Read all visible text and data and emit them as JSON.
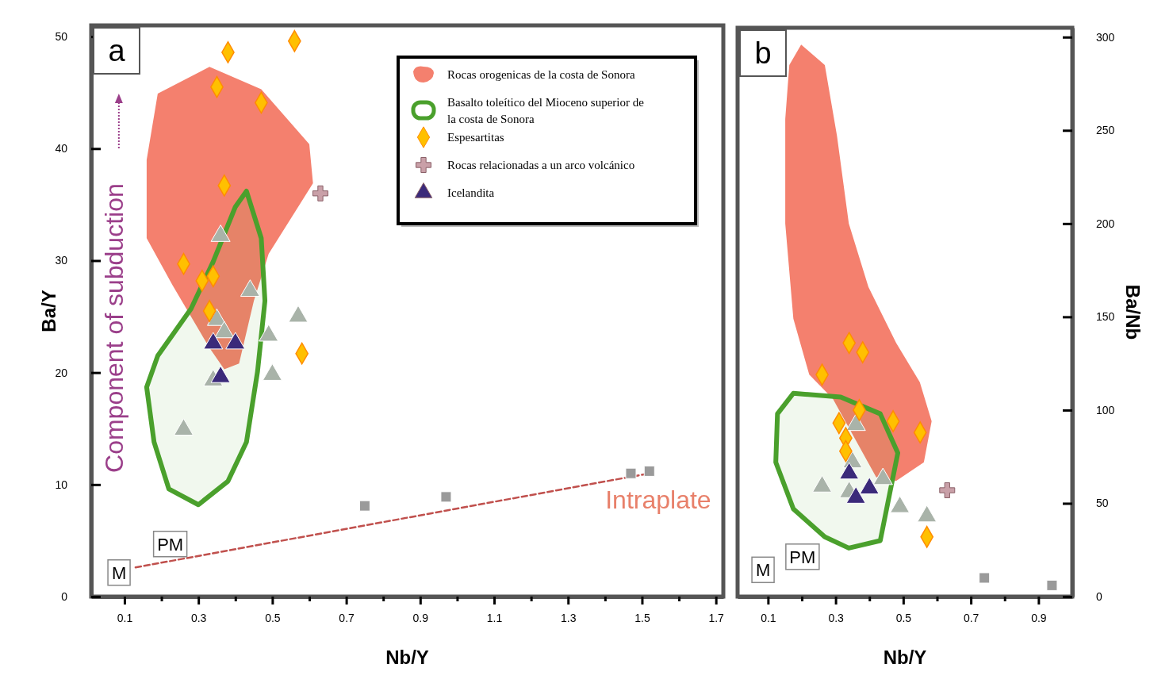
{
  "chart_data": [
    {
      "type": "scatter",
      "title": "a",
      "xlabel": "Nb/Y",
      "ylabel": "Ba/Y",
      "xlim": [
        0.01,
        1.72
      ],
      "ylim": [
        0,
        51
      ],
      "xticks": [
        0.1,
        {
          "value": 0.2,
          "label": null
        },
        0.3,
        {
          "value": 0.4,
          "label": null
        },
        0.5,
        {
          "value": 0.6,
          "label": null
        },
        0.7,
        {
          "value": 0.8,
          "label": null
        },
        0.9,
        {
          "value": 1.0,
          "label": null
        },
        1.1,
        {
          "value": 1.2,
          "label": null
        },
        1.3,
        {
          "value": 1.4,
          "label": null
        },
        1.5,
        {
          "value": 1.6,
          "label": null
        },
        1.7
      ],
      "yticks": [
        0,
        10,
        20,
        30,
        40,
        50
      ],
      "legend": "top right",
      "grid": false,
      "series": [
        {
          "type": "area",
          "name": "Rocas orogenicas de la costa de Sonora",
          "color": "#f4806e",
          "x": [
            0.16,
            0.19,
            0.33,
            0.47,
            0.6,
            0.61,
            0.49,
            0.45,
            0.41,
            0.37,
            0.33,
            0.23,
            0.16
          ],
          "values": [
            39.0,
            44.9,
            47.3,
            45.3,
            40.4,
            36.9,
            30.6,
            26.4,
            20.8,
            20.3,
            22.2,
            27.8,
            32.0
          ]
        },
        {
          "type": "area",
          "name": "Basalto toleítico del Mioceno superior de la costa de Sonora",
          "color": "#4aa02c",
          "line_style": "solid",
          "x": [
            0.43,
            0.47,
            0.48,
            0.46,
            0.43,
            0.38,
            0.3,
            0.22,
            0.18,
            0.16,
            0.19,
            0.28,
            0.34,
            0.4
          ],
          "values": [
            36.2,
            32.0,
            26.4,
            20.1,
            13.8,
            10.3,
            8.2,
            9.6,
            13.8,
            18.7,
            21.5,
            25.7,
            29.9,
            34.8
          ]
        },
        {
          "type": "line",
          "color": "#c0504d",
          "line_style": "dashed",
          "x": [
            0.13,
            1.52
          ],
          "values": [
            2.6,
            11.0
          ]
        },
        {
          "color": "#a9b3a9",
          "marker": "triangle",
          "x": [
            0.36,
            0.26,
            0.35,
            0.37,
            0.44,
            0.49,
            0.5,
            0.57,
            0.34
          ],
          "values": [
            32.2,
            14.9,
            24.7,
            23.6,
            27.3,
            23.3,
            19.8,
            25.0,
            19.3
          ]
        },
        {
          "type": "scatter",
          "color": "#9a9a9a",
          "marker": "square",
          "x": [
            0.75,
            0.97,
            1.47,
            1.52
          ],
          "values": [
            8.1,
            8.9,
            11.0,
            11.2
          ]
        },
        {
          "type": "scatter",
          "name": "Espesartitas",
          "color": "#ffc000",
          "marker": "diamond",
          "x": [
            0.38,
            0.56,
            0.35,
            0.47,
            0.37,
            0.26,
            0.31,
            0.34,
            0.33,
            0.58
          ],
          "values": [
            48.6,
            49.6,
            45.5,
            44.1,
            36.7,
            29.7,
            28.2,
            28.6,
            25.5,
            21.7
          ]
        },
        {
          "type": "scatter",
          "name": "Rocas relacionadas a un arco volcánico",
          "color": "#c9a0a8",
          "marker": "cross",
          "x": [
            0.63
          ],
          "values": [
            36.0
          ]
        },
        {
          "type": "scatter",
          "name": "Icelandita",
          "color": "#3b2a7a",
          "marker": "triangle",
          "x": [
            0.34,
            0.4,
            0.36
          ],
          "values": [
            22.6,
            22.6,
            19.6
          ]
        }
      ],
      "annotations": [
        "Component of subduction",
        "Intraplate",
        "PM",
        "M"
      ]
    },
    {
      "type": "scatter",
      "title": "b",
      "xlabel": "Nb/Y",
      "y2label": "Ba/Nb",
      "xlim": [
        0.01,
        1.0
      ],
      "y2lim": [
        0,
        305
      ],
      "xticks": [
        0.1,
        {
          "value": 0.2,
          "label": null
        },
        0.3,
        {
          "value": 0.4,
          "label": null
        },
        0.5,
        {
          "value": 0.6,
          "label": null
        },
        0.7,
        {
          "value": 0.8,
          "label": null
        },
        0.9
      ],
      "y2ticks": [
        0,
        50,
        100,
        150,
        200,
        250,
        300
      ],
      "legend": false,
      "grid": false,
      "series": [
        {
          "type": "area",
          "axis": "y2",
          "color": "#f4806e",
          "x": [
            0.198,
            0.268,
            0.304,
            0.339,
            0.397,
            0.479,
            0.549,
            0.584,
            0.561,
            0.479,
            0.42,
            0.292,
            0.222,
            0.175,
            0.151,
            0.151,
            0.163
          ],
          "values": [
            296,
            285,
            247,
            200,
            166,
            136,
            115,
            94,
            72,
            62,
            64,
            106,
            119,
            149,
            200,
            256,
            285
          ]
        },
        {
          "type": "area",
          "axis": "y2",
          "color": "#4aa02c",
          "line_style": "solid",
          "x": [
            0.175,
            0.315,
            0.432,
            0.484,
            0.432,
            0.339,
            0.268,
            0.175,
            0.123,
            0.128
          ],
          "values": [
            109,
            107,
            98,
            77,
            30,
            26,
            32,
            47,
            72,
            98
          ]
        },
        {
          "axis": "y2",
          "color": "#a9b3a9",
          "marker": "triangle",
          "x": [
            0.36,
            0.35,
            0.26,
            0.34,
            0.44,
            0.49,
            0.57
          ],
          "values": [
            92,
            72,
            59,
            56,
            63,
            48,
            43
          ]
        },
        {
          "type": "scatter",
          "axis": "y2",
          "color": "#9a9a9a",
          "marker": "square",
          "x": [
            0.74,
            0.94
          ],
          "values": [
            10,
            6
          ]
        },
        {
          "type": "scatter",
          "axis": "y2",
          "color": "#ffc000",
          "marker": "diamond",
          "x": [
            0.34,
            0.38,
            0.26,
            0.37,
            0.31,
            0.33,
            0.33,
            0.47,
            0.55,
            0.57
          ],
          "values": [
            136,
            131,
            119,
            100,
            93,
            85,
            78,
            94,
            88,
            32
          ]
        },
        {
          "type": "scatter",
          "axis": "y2",
          "color": "#c9a0a8",
          "marker": "cross",
          "x": [
            0.63
          ],
          "values": [
            57
          ]
        },
        {
          "type": "scatter",
          "axis": "y2",
          "color": "#3b2a7a",
          "marker": "triangle",
          "x": [
            0.34,
            0.36,
            0.4
          ],
          "values": [
            66,
            53,
            58
          ]
        }
      ],
      "annotations": [
        "PM",
        "M"
      ]
    }
  ]
}
